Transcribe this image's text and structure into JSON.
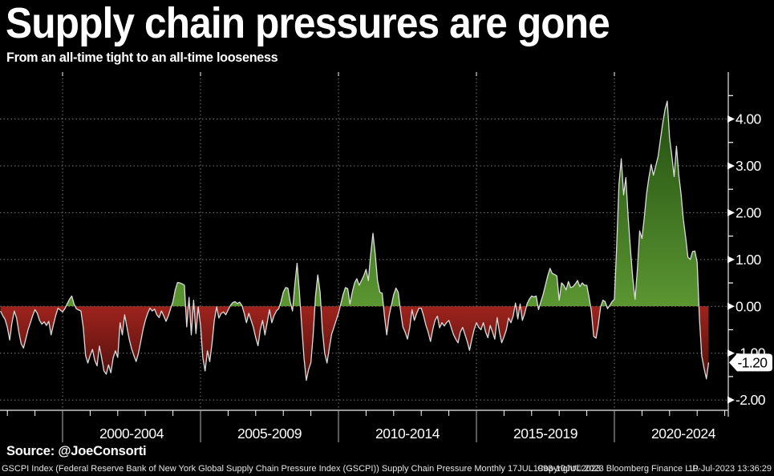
{
  "title": "Supply chain pressures are gone",
  "subtitle": "From an all-time tight to an all-time looseness",
  "source": "Source: @JoeConsorti",
  "footer": {
    "left": "GSCPI Index (Federal Reserve Bank of New York Global Supply Chain Pressure Index (GSCPI)) Supply Chain Pressure  Monthly 17JUL1993-10JUL2023",
    "copyright": "Copyright© 2023 Bloomberg Finance L.P.",
    "timestamp": "10-Jul-2023 13:36:29"
  },
  "chart_data": {
    "type": "area",
    "series_name": "GSCPI Index Supply Chain Pressure",
    "frequency": "monthly",
    "start": "1997-10",
    "end": "2023-06",
    "values": [
      -0.1,
      -0.2,
      -0.28,
      -0.45,
      -0.72,
      -0.35,
      -0.1,
      -0.25,
      -0.55,
      -0.8,
      -0.89,
      -0.7,
      -0.5,
      -0.35,
      -0.2,
      -0.07,
      -0.15,
      -0.3,
      -0.38,
      -0.33,
      -0.41,
      -0.32,
      -0.61,
      -0.4,
      -0.2,
      -0.04,
      -0.08,
      -0.12,
      -0.05,
      0.05,
      0.15,
      0.22,
      0.05,
      -0.05,
      -0.08,
      -0.1,
      -0.45,
      -1.05,
      -1.21,
      -1.05,
      -0.92,
      -1.15,
      -1.27,
      -0.85,
      -1.1,
      -1.38,
      -1.45,
      -1.25,
      -1.42,
      -1.1,
      -0.95,
      -1.09,
      -0.35,
      -0.61,
      -0.18,
      -0.45,
      -0.7,
      -0.9,
      -1.05,
      -1.18,
      -1.0,
      -0.75,
      -0.5,
      -0.3,
      -0.15,
      -0.04,
      -0.1,
      -0.06,
      -0.18,
      -0.24,
      -0.1,
      -0.2,
      -0.32,
      -0.2,
      -0.05,
      0.1,
      0.35,
      0.51,
      0.5,
      0.48,
      0.45,
      -0.44,
      0.19,
      -0.61,
      0.13,
      -0.58,
      -0.01,
      -0.4,
      -1.1,
      -1.38,
      -0.95,
      -1.18,
      -0.8,
      -0.3,
      -0.01,
      -0.25,
      -0.15,
      -0.12,
      -0.18,
      -0.08,
      0.02,
      0.08,
      0.1,
      0.06,
      0.09,
      0.02,
      -0.15,
      -0.35,
      -0.15,
      -0.3,
      -0.45,
      -0.67,
      -0.84,
      -0.5,
      -0.3,
      -0.61,
      -0.35,
      -0.07,
      -0.35,
      -0.2,
      -0.1,
      -0.05,
      0.1,
      0.3,
      0.4,
      0.39,
      0.1,
      -0.1,
      0.45,
      0.92,
      0.3,
      -0.4,
      -1.1,
      -1.58,
      -1.35,
      -1.2,
      -0.6,
      0.2,
      0.67,
      0.3,
      -0.5,
      -1.0,
      -1.21,
      -0.9,
      -0.6,
      -0.45,
      -0.3,
      -0.15,
      0.05,
      0.25,
      0.4,
      0.38,
      0.05,
      0.3,
      0.5,
      0.59,
      0.45,
      0.55,
      0.65,
      0.79,
      0.55,
      1.1,
      1.56,
      1.1,
      0.55,
      0.3,
      0.28,
      -0.2,
      -0.61,
      -0.2,
      0.02,
      0.25,
      0.39,
      0.3,
      -0.1,
      -0.44,
      -0.55,
      -0.7,
      -0.45,
      -0.07,
      -0.3,
      -0.15,
      -0.04,
      -0.04,
      -0.2,
      -0.4,
      -0.55,
      -0.75,
      -0.5,
      -0.3,
      -0.21,
      -0.46,
      -0.35,
      -0.42,
      -0.35,
      -0.3,
      -0.45,
      -0.6,
      -0.7,
      -0.78,
      -0.55,
      -0.45,
      -0.6,
      -0.75,
      -0.94,
      -0.7,
      -0.5,
      -0.35,
      -0.45,
      -0.5,
      -0.35,
      -0.55,
      -0.67,
      -0.41,
      -0.55,
      -0.7,
      -0.24,
      -0.55,
      -0.78,
      -0.65,
      -0.5,
      -0.25,
      -0.35,
      -0.2,
      0.07,
      -0.27,
      0.05,
      -0.3,
      -0.15,
      0.05,
      0.15,
      0.22,
      0.2,
      0.22,
      -0.07,
      0.1,
      0.25,
      0.45,
      0.65,
      0.81,
      0.7,
      0.68,
      0.65,
      0.13,
      0.5,
      0.45,
      0.35,
      0.53,
      0.4,
      0.42,
      0.48,
      0.55,
      0.42,
      0.5,
      0.45,
      0.45,
      0.19,
      -0.1,
      -0.64,
      -0.68,
      -0.4,
      -0.01,
      0.13,
      0.1,
      -0.05,
      0.02,
      0.1,
      0.15,
      1.3,
      2.6,
      3.15,
      2.38,
      2.75,
      1.9,
      1.2,
      0.6,
      0.15,
      0.8,
      1.61,
      1.45,
      1.9,
      2.4,
      2.75,
      3.03,
      2.8,
      3.0,
      3.2,
      3.55,
      3.9,
      4.2,
      4.38,
      3.6,
      3.2,
      2.77,
      3.42,
      2.8,
      2.4,
      1.85,
      1.47,
      1.05,
      1.0,
      1.17,
      1.18,
      0.94,
      -0.28,
      -1.06,
      -1.32,
      -1.55,
      -1.2
    ],
    "ylim": [
      -2.22,
      4.95
    ],
    "yticks": [
      4,
      3,
      2,
      1,
      0,
      -1,
      -2
    ],
    "ytick_labels": [
      "4.00",
      "3.00",
      "2.00",
      "1.00",
      "0.00",
      "-1.00",
      "-2.00"
    ],
    "y_minor_step": 0.5,
    "x_major_years": [
      2000,
      2005,
      2010,
      2015,
      2020
    ],
    "x_minor_year_range": [
      1998,
      2024
    ],
    "x_bucket_labels": [
      "2000-2004",
      "2005-2009",
      "2010-2014",
      "2015-2019",
      "2020-2024"
    ],
    "last_value_label": "-1.20",
    "grid": "dashed",
    "legend": "none",
    "colors": {
      "background": "#000000",
      "line": "#dcdcdc",
      "positive_top": "#1a430b",
      "positive_zero": "#5b9632",
      "negative_zero": "#9e231d",
      "negative_bottom": "#2f0806",
      "grid": "#7a7a7a",
      "axis": "#c8c8c8",
      "tick": "#ffffff",
      "tick_label": "#ffffff",
      "last_value_bg": "#ffffff",
      "last_value_text": "#000000"
    }
  }
}
